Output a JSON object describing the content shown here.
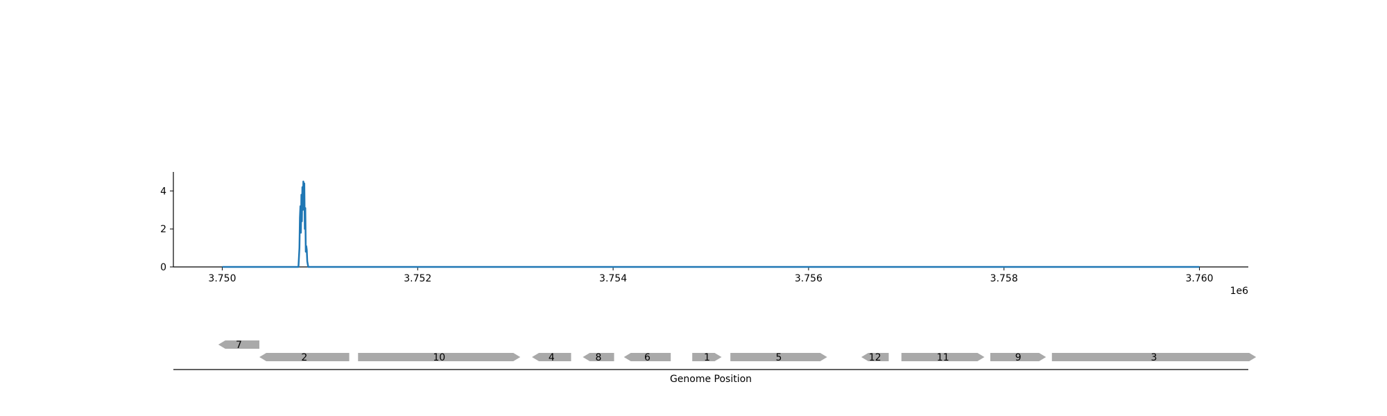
{
  "chart_data": [
    {
      "type": "line",
      "title": "",
      "xlabel": "",
      "ylabel": "",
      "x_offset_label": "1e6",
      "xlim": [
        3.7495,
        3.7605
      ],
      "ylim": [
        0,
        5
      ],
      "x_ticks": [
        3.75,
        3.752,
        3.754,
        3.756,
        3.758,
        3.76
      ],
      "x_tick_labels": [
        "3.750",
        "3.752",
        "3.754",
        "3.756",
        "3.758",
        "3.760"
      ],
      "y_ticks": [
        0,
        2,
        4
      ],
      "y_tick_labels": [
        "0",
        "2",
        "4"
      ],
      "grid": false,
      "color": "#1f77b4",
      "series": [
        {
          "x": [
            3.75,
            3.75078,
            3.75079,
            3.750795,
            3.7508,
            3.750805,
            3.75081,
            3.750815,
            3.75082,
            3.750825,
            3.75083,
            3.750835,
            3.75084,
            3.750845,
            3.75085,
            3.750855,
            3.75086,
            3.750865,
            3.75087,
            3.75088,
            3.76
          ],
          "y": [
            0,
            0,
            1.0,
            2.6,
            3.2,
            1.8,
            3.8,
            2.4,
            4.2,
            3.0,
            4.5,
            3.6,
            4.4,
            2.0,
            3.1,
            0.8,
            1.1,
            0.9,
            0.3,
            0,
            0
          ]
        }
      ]
    },
    {
      "type": "gene-track",
      "xlabel": "Genome Position",
      "genes": [
        {
          "label": "7",
          "start": 3.74996,
          "end": 3.75038,
          "strand": "-",
          "row": 1
        },
        {
          "label": "2",
          "start": 3.75038,
          "end": 3.7513,
          "strand": "-",
          "row": 0
        },
        {
          "label": "10",
          "start": 3.75139,
          "end": 3.75305,
          "strand": "+",
          "row": 0
        },
        {
          "label": "4",
          "start": 3.75317,
          "end": 3.75357,
          "strand": "-",
          "row": 0
        },
        {
          "label": "8",
          "start": 3.75369,
          "end": 3.75401,
          "strand": "-",
          "row": 0
        },
        {
          "label": "6",
          "start": 3.75411,
          "end": 3.75459,
          "strand": "-",
          "row": 0
        },
        {
          "label": "1",
          "start": 3.75481,
          "end": 3.75511,
          "strand": "+",
          "row": 0
        },
        {
          "label": "5",
          "start": 3.7552,
          "end": 3.75619,
          "strand": "+",
          "row": 0
        },
        {
          "label": "12",
          "start": 3.75654,
          "end": 3.75682,
          "strand": "-",
          "row": 0
        },
        {
          "label": "11",
          "start": 3.75695,
          "end": 3.7578,
          "strand": "+",
          "row": 0
        },
        {
          "label": "9",
          "start": 3.75786,
          "end": 3.75843,
          "strand": "+",
          "row": 0
        },
        {
          "label": "3",
          "start": 3.75849,
          "end": 3.76058,
          "strand": "+",
          "row": 0
        }
      ]
    }
  ]
}
